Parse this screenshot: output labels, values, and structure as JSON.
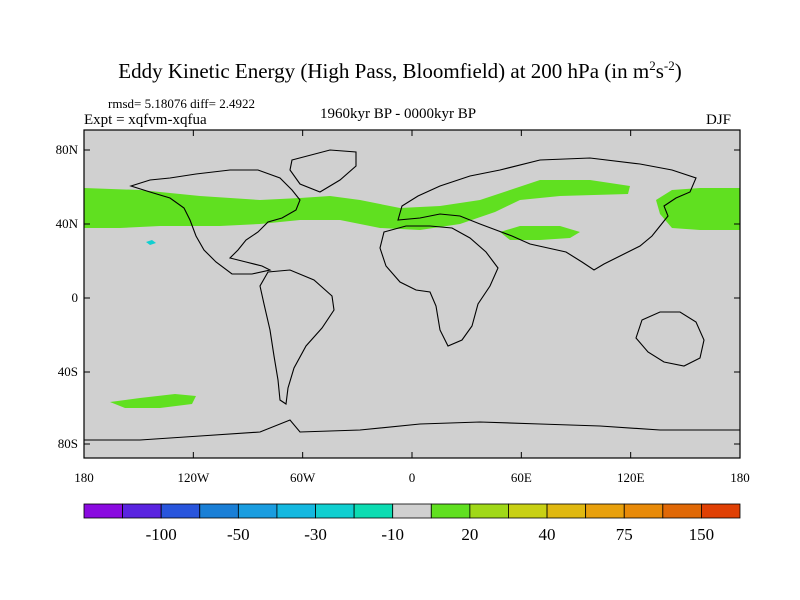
{
  "title": {
    "main": "Eddy Kinetic Energy (High Pass, Bloomfield) at 200 hPa (in m",
    "sup1": "2",
    "mid": "s",
    "sup2": "-2",
    "end": ")"
  },
  "stats": "rmsd= 5.18076  diff= 2.4922",
  "experiment": "Expt = xqfvm-xqfua",
  "period": "1960kyr BP - 0000kyr BP",
  "season": "DJF",
  "axes": {
    "lon_labels": [
      "180",
      "120W",
      "60W",
      "0",
      "60E",
      "120E",
      "180"
    ],
    "lat_labels": [
      "80N",
      "40N",
      "0",
      "40S",
      "80S"
    ]
  },
  "colorbar": {
    "colors": [
      "#8a0ae0",
      "#5a24e0",
      "#2855dc",
      "#1a7fd6",
      "#1a9de0",
      "#14b8e0",
      "#10cfd0",
      "#0cdcb2",
      "#d0d0d0",
      "#60e020",
      "#a0d818",
      "#c8d014",
      "#e0b810",
      "#e8a00c",
      "#e88a08",
      "#e06806",
      "#e04004"
    ],
    "labels": [
      "-100",
      "-50",
      "-30",
      "-10",
      "20",
      "40",
      "75",
      "150"
    ]
  },
  "colors": {
    "background": "#d0d0d0",
    "positive_anomaly": "#60e020",
    "negative_anomaly": "#10cfd0"
  }
}
